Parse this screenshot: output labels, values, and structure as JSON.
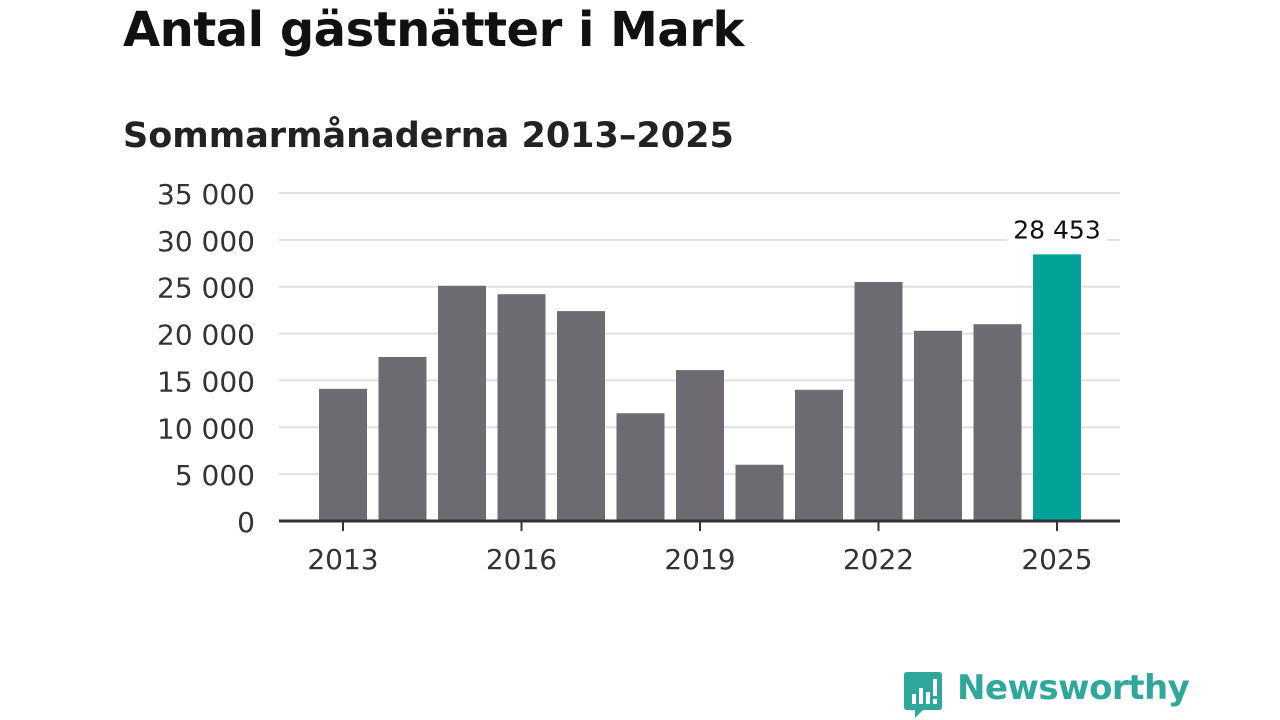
{
  "header": {
    "title": "Antal gästnätter i Mark",
    "subtitle": "Sommarmånaderna 2013–2025"
  },
  "brand": {
    "name": "Newsworthy",
    "color": "#2fa79a",
    "icon": "newsworthy-logo-icon"
  },
  "colors": {
    "bar": "#6e6c72",
    "highlight": "#00a298",
    "grid": "#e0e0e0",
    "axis": "#333333",
    "text": "#333333"
  },
  "chart_data": {
    "type": "bar",
    "title": "Antal gästnätter i Mark",
    "subtitle": "Sommarmånaderna 2013–2025",
    "xlabel": "",
    "ylabel": "",
    "categories": [
      "2013",
      "2014",
      "2015",
      "2016",
      "2017",
      "2018",
      "2019",
      "2020",
      "2021",
      "2022",
      "2023",
      "2024",
      "2025"
    ],
    "values": [
      14100,
      17500,
      25100,
      24200,
      22400,
      11500,
      16100,
      6000,
      14000,
      25500,
      20300,
      21000,
      28453
    ],
    "ylim": [
      0,
      35000
    ],
    "yticks": [
      0,
      5000,
      10000,
      15000,
      20000,
      25000,
      30000,
      35000
    ],
    "ytick_labels": [
      "0",
      "5 000",
      "10 000",
      "15 000",
      "20 000",
      "25 000",
      "30 000",
      "35 000"
    ],
    "xtick_labels": [
      "2013",
      "2016",
      "2019",
      "2022",
      "2025"
    ],
    "highlight_category": "2025",
    "annotations": [
      {
        "category": "2025",
        "text": "28 453"
      }
    ],
    "grid": true,
    "legend": "none"
  }
}
